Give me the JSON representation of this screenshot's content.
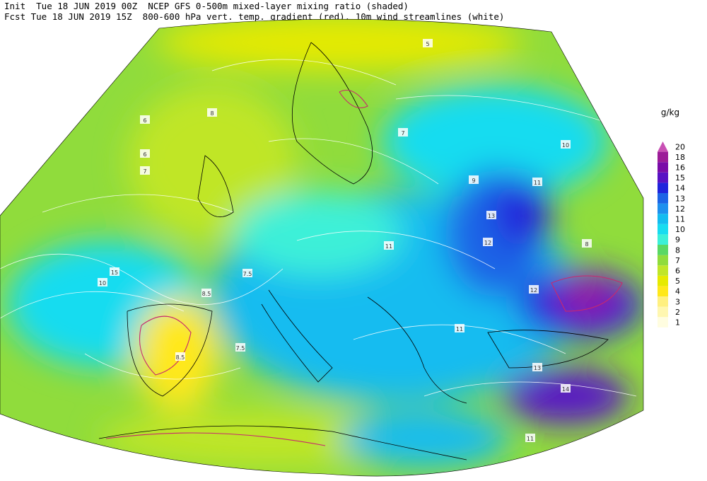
{
  "header": {
    "line1": "Init  Tue 18 JUN 2019 00Z  NCEP GFS 0-500m mixed-layer mixing ratio (shaded)",
    "line2": "Fcst Tue 18 JUN 2019 15Z  800-600 hPa vert. temp. gradient (red). 10m wind streamlines (white)"
  },
  "legend": {
    "unit": "g/kg",
    "levels": [
      {
        "value": 1,
        "color": "#fffde0"
      },
      {
        "value": 2,
        "color": "#fff7b0"
      },
      {
        "value": 3,
        "color": "#fff080"
      },
      {
        "value": 4,
        "color": "#ffe81a"
      },
      {
        "value": 5,
        "color": "#e6ea00"
      },
      {
        "value": 6,
        "color": "#c0e628"
      },
      {
        "value": 7,
        "color": "#90dc3c"
      },
      {
        "value": 8,
        "color": "#5ad864"
      },
      {
        "value": 9,
        "color": "#3cf0d8"
      },
      {
        "value": 10,
        "color": "#18dcf0"
      },
      {
        "value": 11,
        "color": "#14bcf0"
      },
      {
        "value": 12,
        "color": "#1e90ee"
      },
      {
        "value": 13,
        "color": "#1c64e6"
      },
      {
        "value": 14,
        "color": "#2024dc"
      },
      {
        "value": 15,
        "color": "#5812c4"
      },
      {
        "value": 16,
        "color": "#7a0ca8"
      },
      {
        "value": 18,
        "color": "#9c1c98"
      },
      {
        "value": 20,
        "color": "#c850b4"
      }
    ]
  },
  "map_labels": [
    "5",
    "6",
    "6",
    "7",
    "7",
    "8",
    "8",
    "9",
    "10",
    "10",
    "11",
    "11",
    "11",
    "12",
    "12",
    "13",
    "13",
    "14",
    "15",
    "7.5",
    "7.5",
    "8.5",
    "8.5",
    "11"
  ]
}
